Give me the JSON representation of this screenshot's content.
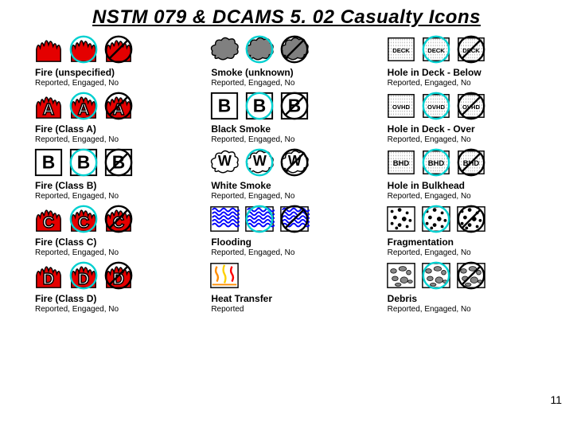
{
  "title": "NSTM 079 & DCAMS 5. 02 Casualty Icons",
  "page_number": "11",
  "colors": {
    "fire_red": "#e40000",
    "black": "#000000",
    "grey_smoke": "#808080",
    "white": "#ffffff",
    "blue": "#0000ff",
    "cyan": "#00d0d0",
    "orange": "#ff8c00",
    "yellow": "#ffd000",
    "red": "#ff0000"
  },
  "status_text": "Reported, Engaged, No",
  "rows": [
    [
      {
        "kind": "fire",
        "letter": "",
        "label": "Fire (unspecified)",
        "sub": "Reported, Engaged, No"
      },
      {
        "kind": "cloud",
        "fill": "#808080",
        "label": "Smoke (unknown)",
        "sub": "Reported, Engaged, No"
      },
      {
        "kind": "square",
        "letter": "DECK",
        "label": "Hole in Deck - Below",
        "sub": "Reported, Engaged, No"
      }
    ],
    [
      {
        "kind": "fire",
        "letter": "A",
        "label": "Fire (Class A)",
        "sub": "Reported, Engaged, No"
      },
      {
        "kind": "square",
        "letter": "B",
        "bg": "#ffffff",
        "label": "Black Smoke",
        "sub": "Reported, Engaged, No"
      },
      {
        "kind": "square",
        "letter": "OVHD",
        "label": "Hole in Deck - Over",
        "sub": "Reported, Engaged, No"
      }
    ],
    [
      {
        "kind": "square",
        "letter": "B",
        "bg": "#ffffff",
        "label": "Fire (Class B)",
        "sub": "Reported, Engaged, No"
      },
      {
        "kind": "cloud",
        "fill": "#ffffff",
        "letter": "W",
        "label": "White Smoke",
        "sub": "Reported, Engaged, No"
      },
      {
        "kind": "square",
        "letter": "BHD",
        "label": "Hole in Bulkhead",
        "sub": "Reported, Engaged, No"
      }
    ],
    [
      {
        "kind": "fire",
        "letter": "C",
        "label": "Fire (Class C)",
        "sub": "Reported, Engaged, No"
      },
      {
        "kind": "waves",
        "label": "Flooding",
        "sub": "Reported, Engaged, No"
      },
      {
        "kind": "dots",
        "label": "Fragmentation",
        "sub": "Reported, Engaged, No"
      }
    ],
    [
      {
        "kind": "fire",
        "letter": "D",
        "label": "Fire (Class D)",
        "sub": "Reported, Engaged, No"
      },
      {
        "kind": "heat",
        "label": "Heat Transfer",
        "sub": "Reported"
      },
      {
        "kind": "rocks",
        "label": "Debris",
        "sub": "Reported, Engaged, No"
      }
    ]
  ]
}
